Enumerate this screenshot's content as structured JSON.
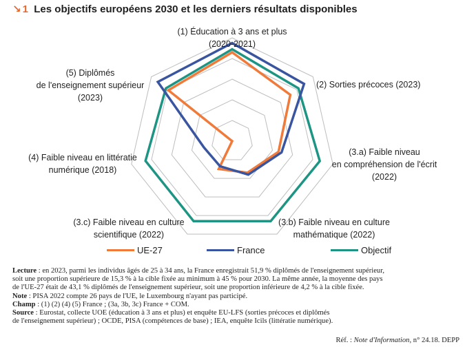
{
  "figure": {
    "number": "1",
    "title": "Les objectifs européens 2030 et les derniers résultats disponibles"
  },
  "chart_data": {
    "type": "radar",
    "axes": [
      [
        "(1) Éducation à 3 ans et plus",
        "(2020-2021)"
      ],
      [
        "(2) Sorties précoces (2023)"
      ],
      [
        "(3.a) Faible niveau",
        "en compréhension de l'écrit",
        "(2022)"
      ],
      [
        "(3.b) Faible niveau en culture",
        "mathématique (2022)"
      ],
      [
        "(3.c) Faible niveau en culture",
        "scientifique (2022)"
      ],
      [
        "(4) Faible niveau en littératie",
        "numérique (2018)"
      ],
      [
        "(5) Diplômés",
        "de l'enseignement supérieur",
        "(2023)"
      ]
    ],
    "scale": [
      0,
      5
    ],
    "gridlines": 5,
    "series": [
      {
        "name": "UE-27",
        "color": "#f07a3a",
        "values": [
          4.3,
          3.6,
          2.3,
          1.7,
          1.5,
          0,
          3.95
        ]
      },
      {
        "name": "France",
        "color": "#3a55a0",
        "values": [
          4.75,
          4.45,
          2.45,
          1.8,
          1.35,
          1.4,
          4.6
        ]
      },
      {
        "name": "Objectif",
        "color": "#1e9584",
        "values": [
          4.45,
          4.1,
          4.35,
          4.3,
          4.3,
          4.3,
          4.1
        ]
      }
    ],
    "legend_position": "bottom",
    "grid": true
  },
  "notes": {
    "lecture_label": "Lecture",
    "lecture_line1": " : en 2023, parmi les individus âgés de 25 à 34 ans, la France enregistrait 51,9 % diplômés de l'enseignement supérieur,",
    "lecture_line2": "soit une proportion supérieure de 15,3 % à la cible fixée au minimum à 45 % pour 2030. La même année, la moyenne des pays",
    "lecture_line3": "de l'UE-27 était de 43,1 % diplômés de l'enseignement supérieur, soit une proportion inférieure de 4,2 % à la cible fixée.",
    "note_label": "Note",
    "note_text": " : PISA 2022 compte 26 pays de l'UE, le Luxembourg n'ayant pas participé.",
    "champ_label": "Champ",
    "champ_text": " : (1) (2) (4) (5) France ; (3a, 3b, 3c) France + COM.",
    "source_label": "Source",
    "source_line1": " : Eurostat, collecte UOE (éducation à 3 ans et plus) et enquête EU-LFS (sorties précoces et diplômés",
    "source_line2": "de l'enseignement supérieur) ; OCDE, PISA (compétences de base) ; IEA, enquête Icils (littératie numérique).",
    "ref_prefix": "Réf. : ",
    "ref_italic": "Note d'Information",
    "ref_suffix": ", n° 24.18. DEPP"
  }
}
